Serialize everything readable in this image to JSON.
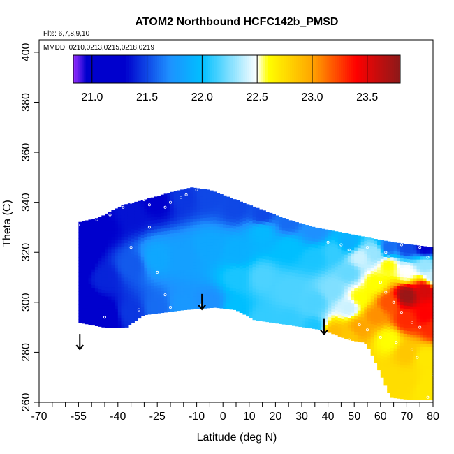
{
  "chart_data": {
    "type": "heatmap",
    "title": "ATOM2 Northbound HCFC142b_PMSD",
    "flights_note": "Flts: 6,7,8,9,10",
    "dates_note": "MMDD: 0210,0213,0215,0218,0219",
    "xlabel": "Latitude (deg N)",
    "ylabel": "Theta (C)",
    "xlim": [
      -70,
      80
    ],
    "ylim": [
      260,
      405
    ],
    "xticks": [
      -70,
      -55,
      -40,
      -25,
      -10,
      0,
      10,
      20,
      30,
      40,
      50,
      60,
      70,
      80
    ],
    "yticks": [
      260,
      280,
      300,
      320,
      340,
      360,
      380,
      400
    ],
    "colorbar": {
      "min": 20.83,
      "max": 23.8,
      "ticks": [
        21.0,
        21.5,
        22.0,
        22.5,
        23.0,
        23.5
      ],
      "tick_labels": [
        "21.0",
        "21.5",
        "22.0",
        "22.5",
        "23.0",
        "23.5"
      ],
      "colors": [
        "#9b30ff",
        "#0000cd",
        "#0000cd",
        "#1e90ff",
        "#00bfff",
        "#ffffff",
        "#ffff00",
        "#ffa500",
        "#ff0000",
        "#8b1a1a"
      ],
      "color_stops": [
        20.83,
        20.95,
        21.3,
        21.7,
        22.0,
        22.5,
        22.6,
        23.0,
        23.4,
        23.8
      ]
    },
    "field": {
      "top_boundary": [
        [
          -55,
          332
        ],
        [
          -47,
          334
        ],
        [
          -38,
          339
        ],
        [
          -30,
          341
        ],
        [
          -20,
          344
        ],
        [
          -12,
          346
        ],
        [
          -5,
          345
        ],
        [
          5,
          341
        ],
        [
          15,
          337
        ],
        [
          25,
          333
        ],
        [
          35,
          330
        ],
        [
          45,
          328
        ],
        [
          55,
          326
        ],
        [
          65,
          324
        ],
        [
          80,
          322
        ]
      ],
      "bottom_boundary": [
        [
          -55,
          292
        ],
        [
          -45,
          290
        ],
        [
          -37,
          290
        ],
        [
          -30,
          295
        ],
        [
          -15,
          297
        ],
        [
          -3,
          298
        ],
        [
          5,
          297
        ],
        [
          12,
          293
        ],
        [
          25,
          291
        ],
        [
          38,
          289
        ],
        [
          48,
          285
        ],
        [
          54,
          284
        ],
        [
          56,
          281
        ],
        [
          64,
          262
        ],
        [
          72,
          261
        ],
        [
          80,
          261
        ]
      ],
      "samples": [
        [
          -55,
          300,
          21.1
        ],
        [
          -55,
          315,
          21.2
        ],
        [
          -55,
          325,
          21.1
        ],
        [
          -45,
          294,
          21.2
        ],
        [
          -45,
          310,
          21.4
        ],
        [
          -45,
          330,
          21.3
        ],
        [
          -35,
          296,
          21.45
        ],
        [
          -35,
          315,
          21.55
        ],
        [
          -35,
          335,
          21.35
        ],
        [
          -25,
          298,
          21.6
        ],
        [
          -25,
          318,
          21.85
        ],
        [
          -25,
          340,
          21.3
        ],
        [
          -15,
          299,
          21.75
        ],
        [
          -15,
          318,
          21.8
        ],
        [
          -15,
          342,
          21.45
        ],
        [
          -5,
          300,
          21.7
        ],
        [
          -5,
          322,
          21.85
        ],
        [
          -5,
          343,
          21.5
        ],
        [
          5,
          297,
          22.0
        ],
        [
          5,
          310,
          22.05
        ],
        [
          5,
          320,
          21.9
        ],
        [
          5,
          338,
          21.5
        ],
        [
          15,
          293,
          22.1
        ],
        [
          15,
          310,
          22.15
        ],
        [
          15,
          328,
          21.95
        ],
        [
          15,
          335,
          21.5
        ],
        [
          25,
          292,
          22.1
        ],
        [
          25,
          305,
          22.15
        ],
        [
          25,
          322,
          22.0
        ],
        [
          25,
          332,
          21.6
        ],
        [
          35,
          290,
          22.05
        ],
        [
          35,
          300,
          22.15
        ],
        [
          35,
          318,
          22.05
        ],
        [
          35,
          329,
          21.7
        ],
        [
          42,
          288,
          22.9
        ],
        [
          42,
          305,
          22.25
        ],
        [
          42,
          320,
          22.1
        ],
        [
          48,
          286,
          22.85
        ],
        [
          48,
          298,
          22.4
        ],
        [
          48,
          312,
          22.2
        ],
        [
          48,
          324,
          21.9
        ],
        [
          52,
          290,
          23.0
        ],
        [
          52,
          302,
          22.6
        ],
        [
          52,
          318,
          22.4
        ],
        [
          58,
          295,
          23.05
        ],
        [
          58,
          308,
          22.6
        ],
        [
          58,
          320,
          22.3
        ],
        [
          63,
          270,
          22.75
        ],
        [
          63,
          285,
          22.6
        ],
        [
          63,
          300,
          23.2
        ],
        [
          63,
          315,
          22.6
        ],
        [
          63,
          322,
          21.6
        ],
        [
          70,
          268,
          22.75
        ],
        [
          70,
          280,
          22.85
        ],
        [
          70,
          293,
          23.3
        ],
        [
          70,
          303,
          23.75
        ],
        [
          70,
          312,
          22.5
        ],
        [
          70,
          322,
          21.5
        ],
        [
          77,
          265,
          22.7
        ],
        [
          77,
          278,
          22.7
        ],
        [
          77,
          295,
          23.4
        ],
        [
          77,
          305,
          23.55
        ],
        [
          77,
          315,
          22.3
        ],
        [
          77,
          322,
          21.3
        ],
        [
          80,
          270,
          22.7
        ],
        [
          80,
          290,
          23.3
        ],
        [
          80,
          310,
          22.4
        ]
      ],
      "sample_points": [
        [
          -55,
          331
        ],
        [
          -48,
          333
        ],
        [
          -43,
          335
        ],
        [
          -38,
          338
        ],
        [
          -35,
          340
        ],
        [
          -33,
          342
        ],
        [
          -30,
          341
        ],
        [
          -28,
          339
        ],
        [
          -22,
          338
        ],
        [
          -20,
          340
        ],
        [
          -16,
          342
        ],
        [
          -14,
          343
        ],
        [
          -10,
          345
        ],
        [
          -7,
          347
        ],
        [
          -28,
          330
        ],
        [
          -35,
          322
        ],
        [
          -45,
          294
        ],
        [
          -32,
          297
        ],
        [
          -20,
          298
        ],
        [
          -8,
          299
        ],
        [
          -22,
          303
        ],
        [
          -25,
          312
        ],
        [
          40,
          324
        ],
        [
          45,
          323
        ],
        [
          48,
          321
        ],
        [
          55,
          322
        ],
        [
          62,
          320
        ],
        [
          68,
          323
        ],
        [
          75,
          322
        ],
        [
          78,
          318
        ],
        [
          50,
          306
        ],
        [
          60,
          308
        ],
        [
          62,
          304
        ],
        [
          65,
          300
        ],
        [
          68,
          296
        ],
        [
          72,
          292
        ],
        [
          75,
          290
        ],
        [
          52,
          291
        ],
        [
          55,
          289
        ],
        [
          60,
          286
        ],
        [
          48,
          285
        ],
        [
          66,
          284
        ],
        [
          72,
          281
        ],
        [
          74,
          278
        ],
        [
          80,
          271
        ],
        [
          78,
          262
        ]
      ]
    },
    "arrows": [
      {
        "lat": -54.5,
        "theta": 284
      },
      {
        "lat": -8,
        "theta": 300
      },
      {
        "lat": 38.5,
        "theta": 290
      }
    ]
  }
}
